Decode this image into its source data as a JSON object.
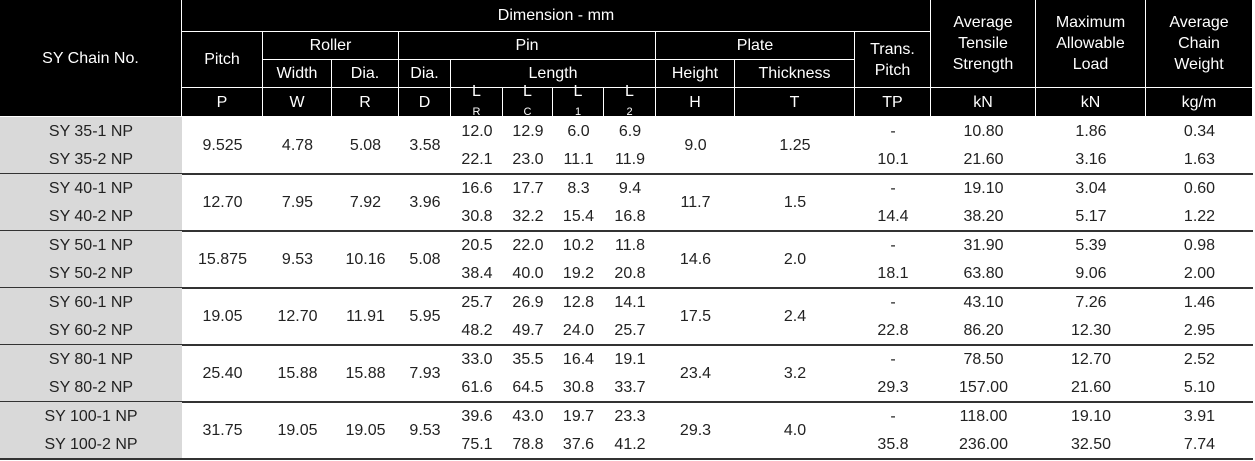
{
  "header": {
    "chain_no": "SY Chain No.",
    "dimension": "Dimension - mm",
    "pitch": "Pitch",
    "roller": "Roller",
    "pin": "Pin",
    "plate": "Plate",
    "trans_pitch": [
      "Trans.",
      "Pitch"
    ],
    "tensile": [
      "Average",
      "Tensile",
      "Strength"
    ],
    "load": [
      "Maximum",
      "Allowable",
      "Load"
    ],
    "weight": [
      "Average",
      "Chain",
      "Weight"
    ],
    "width": "Width",
    "roller_dia": "Dia.",
    "pin_dia": "Dia.",
    "length": "Length",
    "height": "Height",
    "thickness": "Thickness",
    "symbols": [
      "P",
      "W",
      "R",
      "D",
      {
        "main": "L",
        "sub": "R"
      },
      {
        "main": "L",
        "sub": "C"
      },
      {
        "main": "L",
        "sub": "1"
      },
      {
        "main": "L",
        "sub": "2"
      },
      "H",
      "T",
      "TP",
      "kN",
      "kN",
      "kg/m"
    ]
  },
  "groups": [
    {
      "pitch": "9.525",
      "width": "4.78",
      "roller_dia": "5.08",
      "pin_dia": "3.58",
      "height": "9.0",
      "thickness": "1.25",
      "rows": [
        {
          "chain": "SY 35-1 NP",
          "lr": "12.0",
          "lc": "12.9",
          "l1": "6.0",
          "l2": "6.9",
          "trans_pitch": "-",
          "tensile": "10.80",
          "load": "1.86",
          "weight": "0.34"
        },
        {
          "chain": "SY 35-2 NP",
          "lr": "22.1",
          "lc": "23.0",
          "l1": "11.1",
          "l2": "11.9",
          "trans_pitch": "10.1",
          "tensile": "21.60",
          "load": "3.16",
          "weight": "1.63"
        }
      ]
    },
    {
      "pitch": "12.70",
      "width": "7.95",
      "roller_dia": "7.92",
      "pin_dia": "3.96",
      "height": "11.7",
      "thickness": "1.5",
      "rows": [
        {
          "chain": "SY 40-1 NP",
          "lr": "16.6",
          "lc": "17.7",
          "l1": "8.3",
          "l2": "9.4",
          "trans_pitch": "-",
          "tensile": "19.10",
          "load": "3.04",
          "weight": "0.60"
        },
        {
          "chain": "SY 40-2 NP",
          "lr": "30.8",
          "lc": "32.2",
          "l1": "15.4",
          "l2": "16.8",
          "trans_pitch": "14.4",
          "tensile": "38.20",
          "load": "5.17",
          "weight": "1.22"
        }
      ]
    },
    {
      "pitch": "15.875",
      "width": "9.53",
      "roller_dia": "10.16",
      "pin_dia": "5.08",
      "height": "14.6",
      "thickness": "2.0",
      "rows": [
        {
          "chain": "SY 50-1 NP",
          "lr": "20.5",
          "lc": "22.0",
          "l1": "10.2",
          "l2": "11.8",
          "trans_pitch": "-",
          "tensile": "31.90",
          "load": "5.39",
          "weight": "0.98"
        },
        {
          "chain": "SY 50-2 NP",
          "lr": "38.4",
          "lc": "40.0",
          "l1": "19.2",
          "l2": "20.8",
          "trans_pitch": "18.1",
          "tensile": "63.80",
          "load": "9.06",
          "weight": "2.00"
        }
      ]
    },
    {
      "pitch": "19.05",
      "width": "12.70",
      "roller_dia": "11.91",
      "pin_dia": "5.95",
      "height": "17.5",
      "thickness": "2.4",
      "rows": [
        {
          "chain": "SY 60-1 NP",
          "lr": "25.7",
          "lc": "26.9",
          "l1": "12.8",
          "l2": "14.1",
          "trans_pitch": "-",
          "tensile": "43.10",
          "load": "7.26",
          "weight": "1.46"
        },
        {
          "chain": "SY 60-2 NP",
          "lr": "48.2",
          "lc": "49.7",
          "l1": "24.0",
          "l2": "25.7",
          "trans_pitch": "22.8",
          "tensile": "86.20",
          "load": "12.30",
          "weight": "2.95"
        }
      ]
    },
    {
      "pitch": "25.40",
      "width": "15.88",
      "roller_dia": "15.88",
      "pin_dia": "7.93",
      "height": "23.4",
      "thickness": "3.2",
      "rows": [
        {
          "chain": "SY 80-1 NP",
          "lr": "33.0",
          "lc": "35.5",
          "l1": "16.4",
          "l2": "19.1",
          "trans_pitch": "-",
          "tensile": "78.50",
          "load": "12.70",
          "weight": "2.52"
        },
        {
          "chain": "SY 80-2 NP",
          "lr": "61.6",
          "lc": "64.5",
          "l1": "30.8",
          "l2": "33.7",
          "trans_pitch": "29.3",
          "tensile": "157.00",
          "load": "21.60",
          "weight": "5.10"
        }
      ]
    },
    {
      "pitch": "31.75",
      "width": "19.05",
      "roller_dia": "19.05",
      "pin_dia": "9.53",
      "height": "29.3",
      "thickness": "4.0",
      "rows": [
        {
          "chain": "SY 100-1 NP",
          "lr": "39.6",
          "lc": "43.0",
          "l1": "19.7",
          "l2": "23.3",
          "trans_pitch": "-",
          "tensile": "118.00",
          "load": "19.10",
          "weight": "3.91"
        },
        {
          "chain": "SY 100-2 NP",
          "lr": "75.1",
          "lc": "78.8",
          "l1": "37.6",
          "l2": "41.2",
          "trans_pitch": "35.8",
          "tensile": "236.00",
          "load": "32.50",
          "weight": "7.74"
        }
      ]
    }
  ]
}
